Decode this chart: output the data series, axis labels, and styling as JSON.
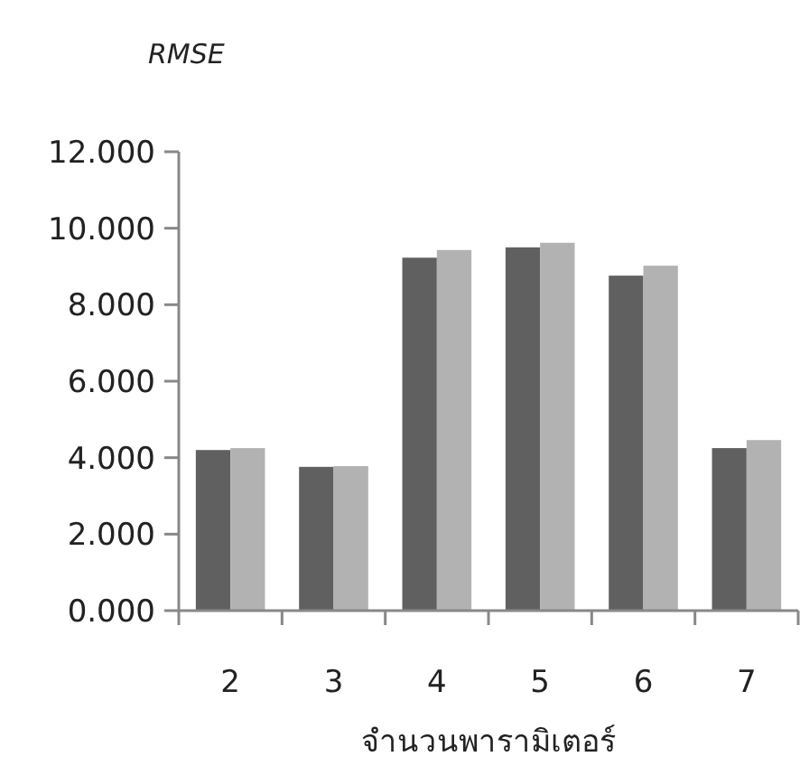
{
  "chart_data": {
    "type": "bar",
    "ylabel": "RMSE",
    "xlabel": "จำนวนพารามิเตอร์",
    "categories": [
      "2",
      "3",
      "4",
      "5",
      "6",
      "7"
    ],
    "series": [
      {
        "color": "#606060",
        "values": [
          4.2,
          3.76,
          9.23,
          9.5,
          8.76,
          4.25
        ]
      },
      {
        "color": "#b2b2b2",
        "values": [
          4.25,
          3.78,
          9.43,
          9.62,
          9.02,
          4.46
        ]
      }
    ],
    "ylim": [
      0,
      12
    ],
    "yticks": [
      {
        "value": 0,
        "label": "0.000"
      },
      {
        "value": 2,
        "label": "2.000"
      },
      {
        "value": 4,
        "label": "4.000"
      },
      {
        "value": 6,
        "label": "6.000"
      },
      {
        "value": 8,
        "label": "8.000"
      },
      {
        "value": 10,
        "label": "10.000"
      },
      {
        "value": 12,
        "label": "12.000"
      }
    ],
    "grid": false
  }
}
